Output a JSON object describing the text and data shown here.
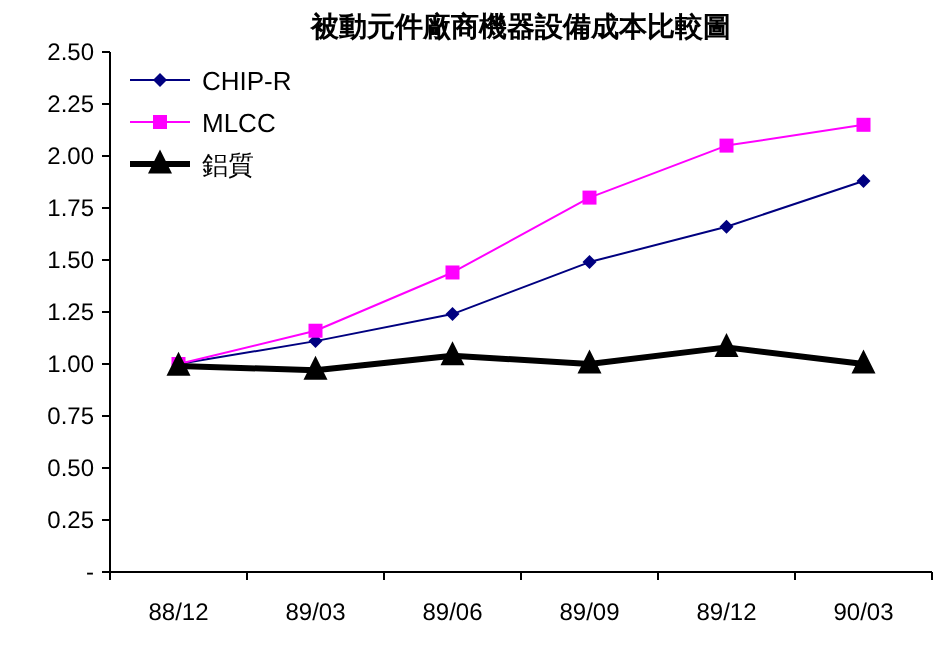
{
  "chart_data": {
    "type": "line",
    "title": "被動元件廠商機器設備成本比較圖",
    "categories": [
      "88/12",
      "89/03",
      "89/06",
      "89/09",
      "89/12",
      "90/03"
    ],
    "series": [
      {
        "name": "CHIP-R",
        "color": "#000080",
        "marker": "diamond",
        "values": [
          1.0,
          1.11,
          1.24,
          1.49,
          1.66,
          1.88
        ]
      },
      {
        "name": "MLCC",
        "color": "#ff00ff",
        "marker": "square",
        "values": [
          1.0,
          1.16,
          1.44,
          1.8,
          2.05,
          2.15
        ]
      },
      {
        "name": "鋁質",
        "color": "#000000",
        "marker": "triangle",
        "values": [
          0.99,
          0.97,
          1.04,
          1.0,
          1.08,
          1.0
        ]
      }
    ],
    "ylim": [
      0,
      2.5
    ],
    "yticks": [
      {
        "value": 0,
        "label": "-"
      },
      {
        "value": 0.25,
        "label": "0.25"
      },
      {
        "value": 0.5,
        "label": "0.50"
      },
      {
        "value": 0.75,
        "label": "0.75"
      },
      {
        "value": 1,
        "label": "1.00"
      },
      {
        "value": 1.25,
        "label": "1.25"
      },
      {
        "value": 1.5,
        "label": "1.50"
      },
      {
        "value": 1.75,
        "label": "1.75"
      },
      {
        "value": 2,
        "label": "2.00"
      },
      {
        "value": 2.25,
        "label": "2.25"
      },
      {
        "value": 2.5,
        "label": "2.50"
      }
    ],
    "legend": "top left",
    "grid": false
  }
}
